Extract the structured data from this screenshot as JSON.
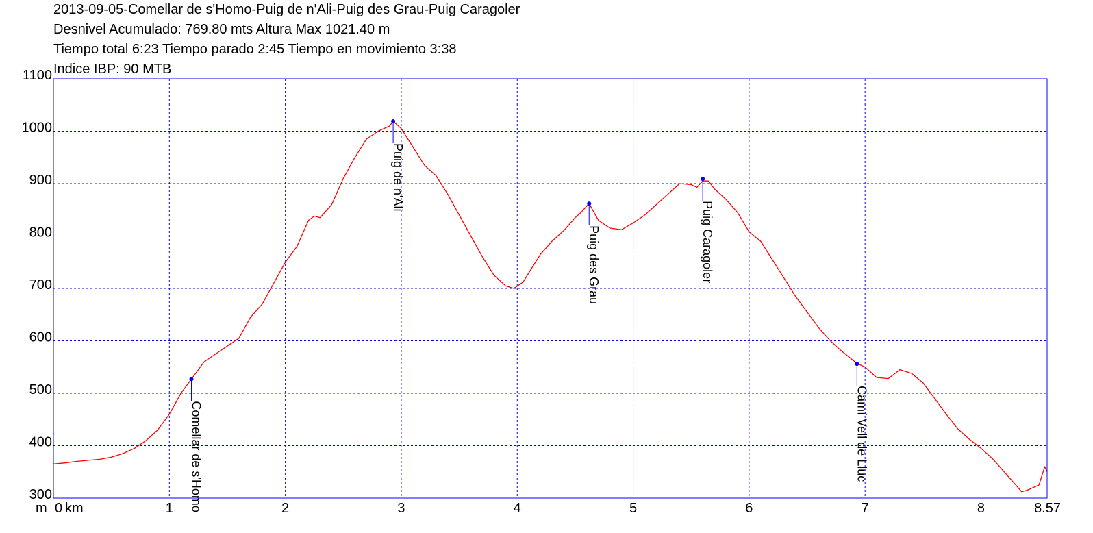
{
  "header": {
    "line1": "2013-09-05-Comellar de s'Homo-Puig de n'Ali-Puig des Grau-Puig Caragoler",
    "line2": "Desnivel Acumulado: 769.80 mts  Altura Max 1021.40 m",
    "line3": "Tiempo total 6:23 Tiempo parado 2:45 Tiempo en movimiento 3:38",
    "line4": "Indice IBP: 90 MTB"
  },
  "chart_data": {
    "type": "line",
    "title": "2013-09-05-Comellar de s'Homo-Puig de n'Ali-Puig des Grau-Puig Caragoler",
    "xlabel": "km",
    "ylabel": "m",
    "xlim": [
      0,
      8.57
    ],
    "ylim": [
      300,
      1100
    ],
    "x_ticks": [
      "0",
      "1",
      "2",
      "3",
      "4",
      "5",
      "6",
      "7",
      "8",
      "8.57"
    ],
    "x_tick_values": [
      0,
      1,
      2,
      3,
      4,
      5,
      6,
      7,
      8,
      8.57
    ],
    "y_ticks": [
      "300",
      "400",
      "500",
      "600",
      "700",
      "800",
      "900",
      "1000",
      "1100"
    ],
    "y_tick_values": [
      300,
      400,
      500,
      600,
      700,
      800,
      900,
      1000,
      1100
    ],
    "grid": true,
    "colors": {
      "line": "#ff0000",
      "grid": "#0000ff",
      "frame": "#0000ff",
      "waypoint": "#0000ff"
    },
    "series": [
      {
        "x": [
          0,
          0.1,
          0.2,
          0.3,
          0.4,
          0.5,
          0.6,
          0.7,
          0.8,
          0.9,
          1.0,
          1.1,
          1.2,
          1.3,
          1.4,
          1.5,
          1.6,
          1.7,
          1.8,
          1.9,
          2.0,
          2.1,
          2.2,
          2.25,
          2.3,
          2.4,
          2.5,
          2.6,
          2.7,
          2.8,
          2.9,
          2.93,
          3.0,
          3.1,
          3.2,
          3.3,
          3.4,
          3.5,
          3.6,
          3.7,
          3.8,
          3.9,
          3.97,
          4.05,
          4.1,
          4.2,
          4.3,
          4.4,
          4.5,
          4.55,
          4.62,
          4.65,
          4.7,
          4.8,
          4.9,
          5.0,
          5.1,
          5.2,
          5.3,
          5.4,
          5.5,
          5.55,
          5.6,
          5.65,
          5.7,
          5.8,
          5.9,
          6.0,
          6.1,
          6.2,
          6.3,
          6.4,
          6.5,
          6.6,
          6.7,
          6.8,
          6.93,
          7.0,
          7.1,
          7.2,
          7.3,
          7.4,
          7.5,
          7.6,
          7.7,
          7.8,
          7.9,
          8.0,
          8.1,
          8.2,
          8.3,
          8.35,
          8.4,
          8.5,
          8.55,
          8.57
        ],
        "y": [
          365,
          367,
          370,
          372,
          374,
          378,
          385,
          395,
          410,
          430,
          460,
          500,
          530,
          560,
          575,
          590,
          605,
          645,
          670,
          710,
          750,
          780,
          830,
          838,
          835,
          860,
          910,
          950,
          985,
          1000,
          1010,
          1019,
          1005,
          970,
          935,
          915,
          880,
          840,
          800,
          760,
          725,
          705,
          700,
          712,
          730,
          765,
          790,
          810,
          835,
          845,
          862,
          850,
          830,
          815,
          812,
          825,
          840,
          860,
          880,
          900,
          898,
          893,
          905,
          905,
          890,
          870,
          845,
          808,
          790,
          755,
          720,
          685,
          655,
          625,
          600,
          580,
          557,
          550,
          530,
          528,
          545,
          538,
          520,
          490,
          460,
          432,
          412,
          395,
          375,
          350,
          325,
          312,
          315,
          325,
          360,
          350
        ]
      }
    ],
    "waypoints": [
      {
        "name": "Comellar de s'Homo",
        "x": 1.19,
        "y": 527
      },
      {
        "name": "Puig de n'Ali",
        "x": 2.93,
        "y": 1019
      },
      {
        "name": "Puig des Grau",
        "x": 4.62,
        "y": 862
      },
      {
        "name": "Puig Caragoler",
        "x": 5.6,
        "y": 909
      },
      {
        "name": "Camí Vell de Lluc",
        "x": 6.93,
        "y": 556
      }
    ]
  }
}
